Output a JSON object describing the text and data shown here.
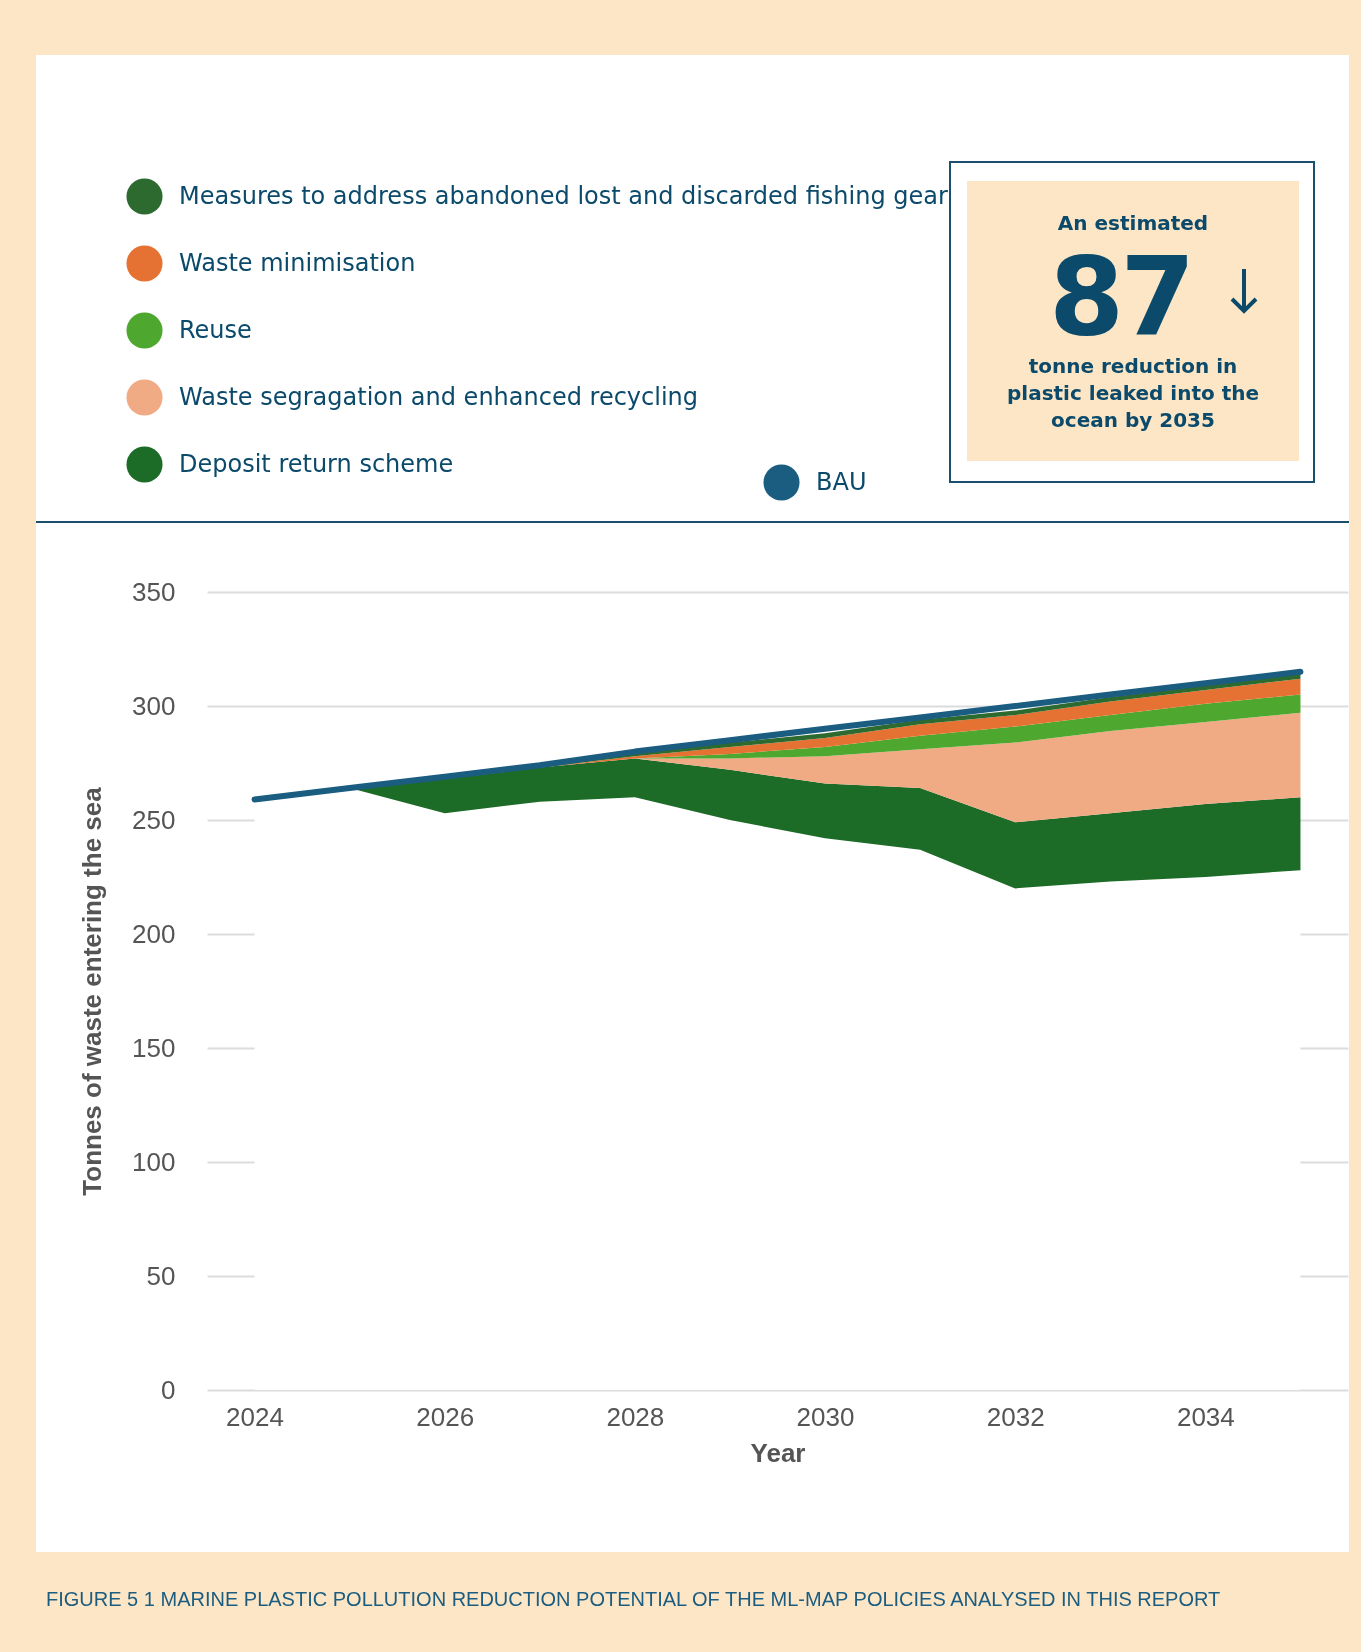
{
  "chart_data": {
    "type": "area",
    "stacked": true,
    "xlabel": "Year",
    "ylabel": "Tonnes of waste entering the sea",
    "x": [
      2024,
      2025,
      2026,
      2027,
      2028,
      2029,
      2030,
      2031,
      2032,
      2033,
      2034,
      2035
    ],
    "xlim": [
      2023.5,
      2035.5
    ],
    "xticks": [
      2024,
      2026,
      2028,
      2030,
      2032,
      2034
    ],
    "ylim": [
      0,
      350
    ],
    "yticks": [
      0,
      50,
      100,
      150,
      200,
      250,
      300,
      350
    ],
    "grid": "y",
    "legend": "top left",
    "series": [
      {
        "color": "#ffffff",
        "values": [
          259,
          264,
          253,
          258,
          260,
          250,
          242,
          237,
          220,
          223,
          225,
          228
        ]
      },
      {
        "name": "Deposit return scheme",
        "color": "#1c6b27",
        "values": [
          0,
          0,
          15,
          15,
          17,
          22,
          24,
          27,
          29,
          30,
          32,
          32
        ]
      },
      {
        "name": "Waste segragation and enhanced recycling",
        "color": "#f0aa84",
        "values": [
          0,
          0,
          0,
          0,
          0,
          5,
          12,
          17,
          35,
          36,
          36,
          37
        ]
      },
      {
        "name": "Reuse",
        "color": "#4ea72e",
        "values": [
          0,
          0,
          0,
          0,
          0,
          2,
          4,
          6,
          7,
          7,
          8,
          8
        ]
      },
      {
        "name": "Waste minimisation",
        "color": "#e57232",
        "values": [
          0,
          0,
          0,
          0,
          1,
          3,
          4,
          5,
          5,
          6,
          6,
          7
        ]
      },
      {
        "name": "Measures to address abandoned lost and discarded fishing gear",
        "color": "#2d6a30",
        "values": [
          0,
          0,
          1,
          1,
          2,
          2,
          2,
          2,
          2,
          2,
          2,
          2
        ]
      },
      {
        "name": "BAU",
        "type": "line",
        "color": "#1a5d80",
        "values": [
          259,
          264,
          269,
          274,
          280,
          285,
          290,
          295,
          300,
          305,
          310,
          315
        ]
      }
    ],
    "annotations": [
      "An estimated",
      "87",
      "tonne reduction in plastic leaked into the ocean by 2035",
      "FIGURE 5 1 MARINE PLASTIC POLLUTION REDUCTION POTENTIAL OF THE ML-MAP POLICIES ANALYSED IN THIS REPORT"
    ]
  }
}
